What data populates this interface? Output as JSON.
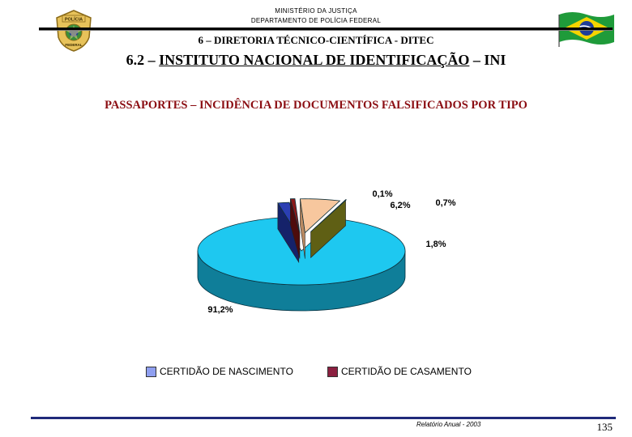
{
  "header": {
    "ministry": "MINISTÉRIO DA JUSTIÇA",
    "department": "DEPARTAMENTO DE POLÍCIA FEDERAL",
    "section": "6 – DIRETORIA TÉCNICO-CIENTÍFICA - DITEC",
    "subsection_prefix": "6.2 – ",
    "subsection_underlined": "INSTITUTO NACIONAL DE IDENTIFICAÇÃO",
    "subsection_suffix": " – INI",
    "emblem_text_top": "POLÍCIA",
    "emblem_text_bottom": "FEDERAL"
  },
  "chart_data": {
    "type": "pie",
    "title": "PASSAPORTES – INCIDÊNCIA DE DOCUMENTOS FALSIFICADOS POR TIPO",
    "slices": [
      {
        "label": "91,2%",
        "value": 91.2,
        "color": "#1ec8f0",
        "side_color": "#0f7e99"
      },
      {
        "label": "1,8%",
        "value": 1.8,
        "color": "#2b3fb3",
        "side_color": "#15226a"
      },
      {
        "label": "0,7%",
        "value": 0.7,
        "color": "#8b1a1a",
        "side_color": "#4e0c0c"
      },
      {
        "label": "6,2%",
        "value": 6.2,
        "color": "#f7c79e",
        "side_color": "#b98a62"
      },
      {
        "label": "0,1%",
        "value": 0.1,
        "color": "#9c9c2a",
        "side_color": "#5f5f14"
      }
    ],
    "legend": [
      {
        "label": "CERTIDÃO DE NASCIMENTO",
        "color": "#8f9ff0"
      },
      {
        "label": "CERTIDÃO DE CASAMENTO",
        "color": "#8b2040"
      }
    ]
  },
  "footer": {
    "report": "Relatório Anual - 2003",
    "page_number": "135"
  }
}
